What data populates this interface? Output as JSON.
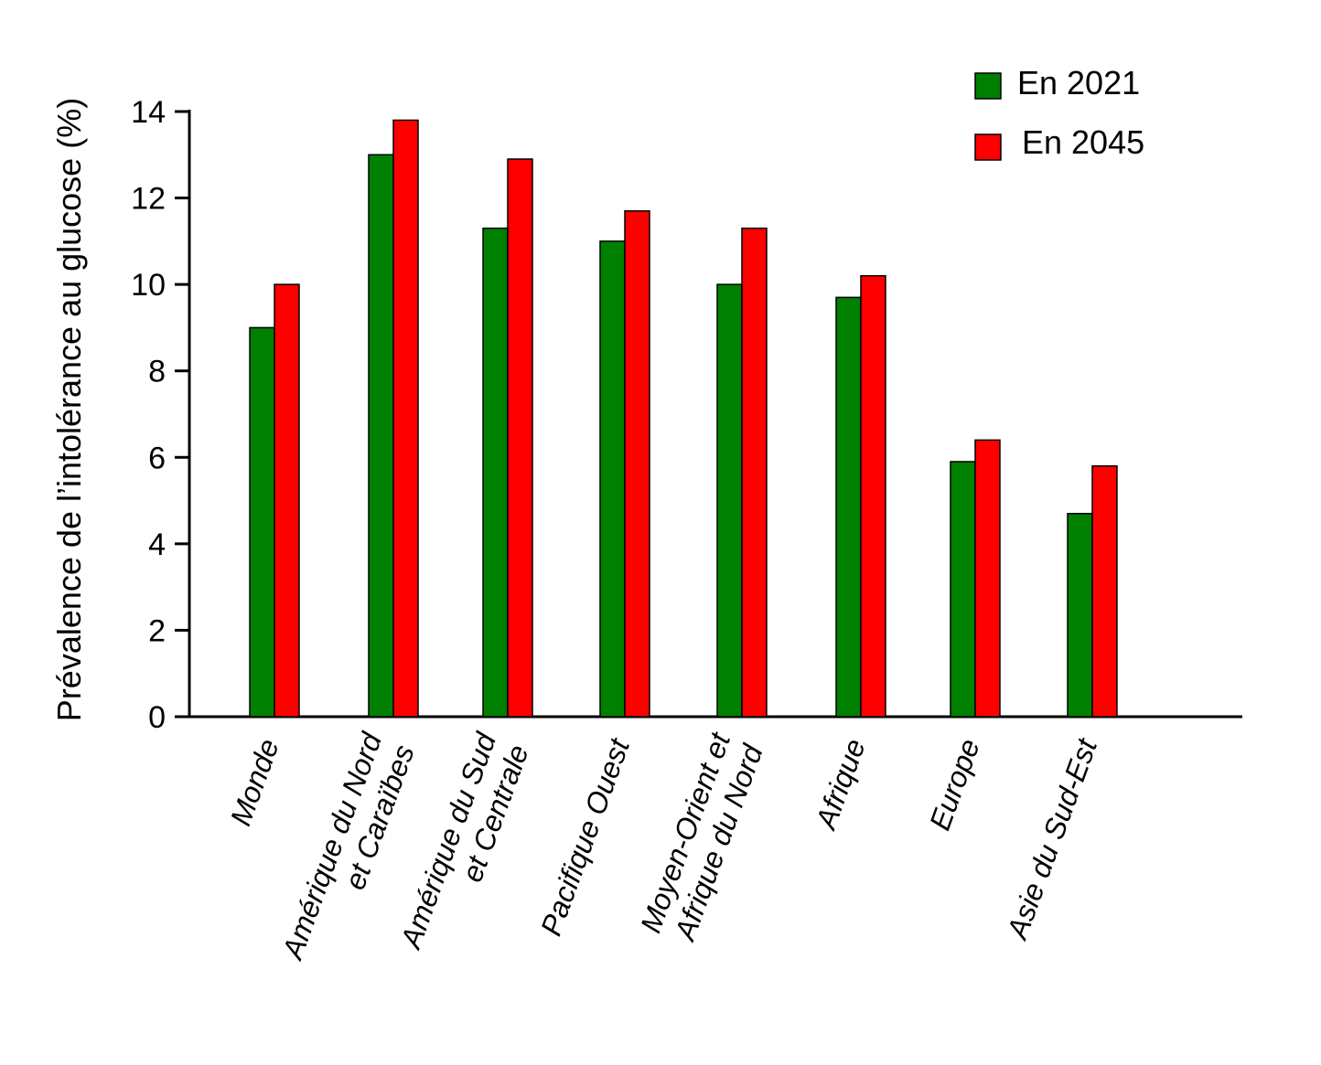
{
  "chart_data": {
    "type": "bar",
    "title": "",
    "xlabel": "",
    "ylabel": "Prévalence de l’intolérance au glucose (%)",
    "ylim": [
      0,
      14
    ],
    "yticks": [
      0,
      2,
      4,
      6,
      8,
      10,
      12,
      14
    ],
    "grid": false,
    "legend_position": "top-right",
    "categories": [
      [
        "Monde"
      ],
      [
        "Amérique du Nord",
        "et Caraïbes"
      ],
      [
        "Amérique du Sud",
        "et Centrale"
      ],
      [
        "Pacifique Ouest"
      ],
      [
        "Moyen-Orient et",
        "Afrique du Nord"
      ],
      [
        "Afrique"
      ],
      [
        "Europe"
      ],
      [
        "Asie du Sud-Est"
      ]
    ],
    "series": [
      {
        "name": "En 2021",
        "color": "#008000",
        "values": [
          9.0,
          13.0,
          11.3,
          11.0,
          10.0,
          9.7,
          5.9,
          4.7
        ]
      },
      {
        "name": "En 2045",
        "color": "#ff0000",
        "values": [
          10.0,
          13.8,
          12.9,
          11.7,
          11.3,
          10.2,
          6.4,
          5.8
        ]
      }
    ]
  }
}
